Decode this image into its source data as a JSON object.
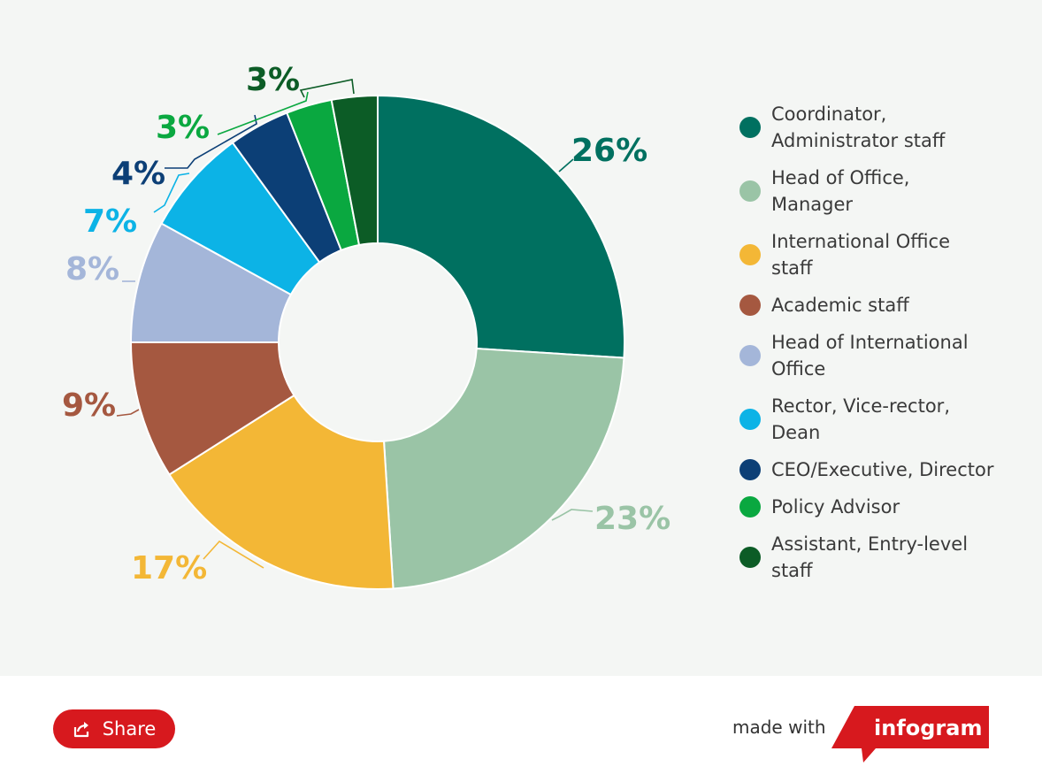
{
  "chart_data": {
    "type": "pie",
    "style": "donut",
    "title": "",
    "legend_position": "right",
    "categories": [
      "Coordinator, Administrator staff",
      "Head of Office, Manager",
      "International Office staff",
      "Academic staff",
      "Head of International Office",
      "Rector, Vice-rector, Dean",
      "CEO/Executive, Director",
      "Policy Advisor",
      "Assistant, Entry-level staff"
    ],
    "values": [
      26,
      23,
      17,
      9,
      8,
      7,
      4,
      3,
      3
    ],
    "value_labels": [
      "26%",
      "23%",
      "17%",
      "9%",
      "8%",
      "7%",
      "4%",
      "3%",
      "3%"
    ],
    "colors": [
      "#007060",
      "#9ac4a6",
      "#f3b736",
      "#a55840",
      "#a4b6d9",
      "#0cb3e6",
      "#0c3f76",
      "#0aa840",
      "#0c5c26"
    ]
  },
  "legend": {
    "items": [
      {
        "line1": "Coordinator,",
        "line2": "Administrator staff"
      },
      {
        "line1": "Head of Office,",
        "line2": "Manager"
      },
      {
        "line1": "International Office",
        "line2": "staff"
      },
      {
        "line1": "Academic staff",
        "line2": ""
      },
      {
        "line1": "Head of International",
        "line2": "Office"
      },
      {
        "line1": "Rector, Vice-rector,",
        "line2": "Dean"
      },
      {
        "line1": "CEO/Executive, Director",
        "line2": ""
      },
      {
        "line1": "Policy Advisor",
        "line2": ""
      },
      {
        "line1": "Assistant, Entry-level",
        "line2": "staff"
      }
    ]
  },
  "footer": {
    "share_label": "Share",
    "made_with": "made with",
    "brand": "infogram",
    "brand_color": "#d7191e"
  }
}
